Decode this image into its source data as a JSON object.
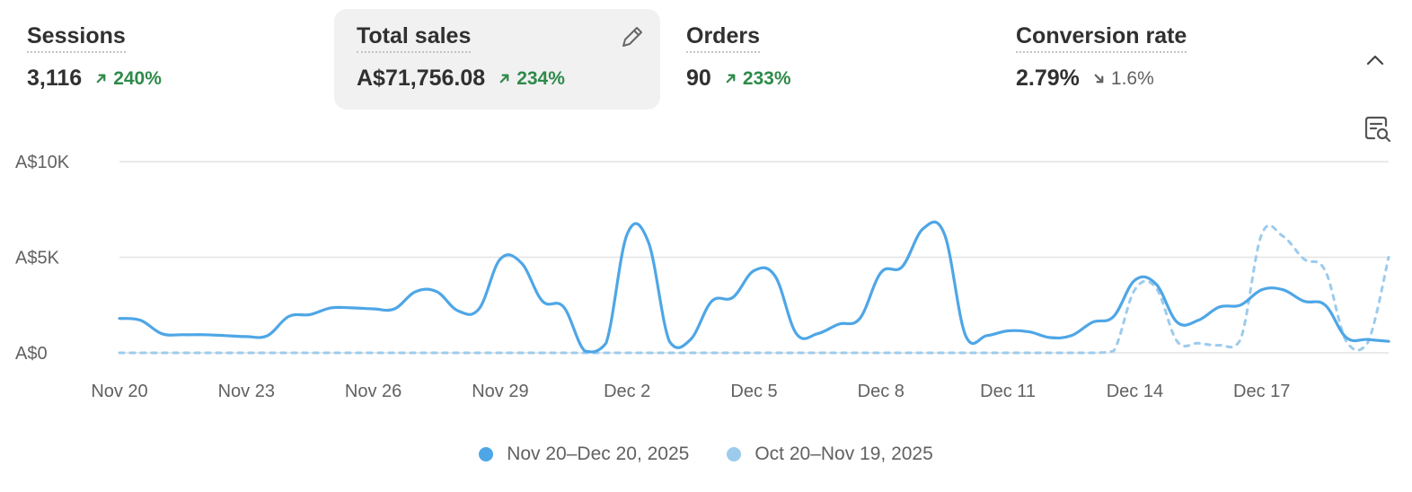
{
  "metrics": [
    {
      "title": "Sessions",
      "value": "3,116",
      "change": "240%",
      "direction": "up"
    },
    {
      "title": "Total sales",
      "value": "A$71,756.08",
      "change": "234%",
      "direction": "up",
      "selected": true
    },
    {
      "title": "Orders",
      "value": "90",
      "change": "233%",
      "direction": "up"
    },
    {
      "title": "Conversion rate",
      "value": "2.79%",
      "change": "1.6%",
      "direction": "down"
    }
  ],
  "icons": {
    "edit": "pencil-icon",
    "collapse": "chevron-up-icon",
    "analyze": "search-chart-icon"
  },
  "colors": {
    "current": "#4ea6e6",
    "previous": "#9ccbec",
    "positive": "#2e8a4a",
    "selected_bg": "#f1f1f1"
  },
  "chart_data": {
    "type": "line",
    "y_ticks": [
      "A$10K",
      "A$5K",
      "A$0"
    ],
    "y_tick_values": [
      10000,
      5000,
      0
    ],
    "ylim": [
      0,
      10000
    ],
    "x_tick_labels": [
      "Nov 20",
      "Nov 23",
      "Nov 26",
      "Nov 29",
      "Dec 2",
      "Dec 5",
      "Dec 8",
      "Dec 11",
      "Dec 14",
      "Dec 17"
    ],
    "x_tick_positions": [
      0,
      3,
      6,
      9,
      12,
      15,
      18,
      21,
      24,
      27
    ],
    "grid": true,
    "series": [
      {
        "name": "Nov 20–Dec 20, 2025",
        "style": "solid",
        "x": [
          0,
          0.5,
          1,
          1.5,
          2,
          2.5,
          3,
          3.5,
          4,
          4.5,
          5,
          5.5,
          6,
          6.5,
          7,
          7.5,
          8,
          8.5,
          9,
          9.5,
          10,
          10.5,
          11,
          11.5,
          12,
          12.5,
          13,
          13.5,
          14,
          14.5,
          15,
          15.5,
          16,
          16.5,
          17,
          17.5,
          18,
          18.5,
          19,
          19.5,
          20,
          20.5,
          21,
          21.5,
          22,
          22.5,
          23,
          23.5,
          24,
          24.5,
          25,
          25.5,
          26,
          26.5,
          27,
          27.5,
          28,
          28.5,
          29,
          29.5,
          30
        ],
        "values": [
          1800,
          1700,
          1000,
          950,
          950,
          900,
          850,
          900,
          1900,
          2000,
          2350,
          2350,
          2300,
          2300,
          3200,
          3200,
          2200,
          2300,
          4900,
          4700,
          2700,
          2400,
          100,
          500,
          6200,
          5800,
          600,
          700,
          2700,
          2900,
          4300,
          4000,
          1000,
          1000,
          1500,
          1800,
          4200,
          4500,
          6500,
          6200,
          900,
          900,
          1150,
          1100,
          800,
          900,
          1600,
          1900,
          3800,
          3600,
          1600,
          1700,
          2400,
          2500,
          3300,
          3300,
          2700,
          2500,
          800,
          700,
          600
        ]
      },
      {
        "name": "Oct 20–Nov 19, 2025",
        "style": "dashed",
        "x": [
          0,
          2,
          4,
          6,
          8,
          10,
          12,
          14,
          16,
          18,
          20,
          22,
          23,
          23.5,
          24,
          24.5,
          25,
          25.5,
          26,
          26.5,
          27,
          27.5,
          28,
          28.5,
          29,
          29.5,
          30
        ],
        "values": [
          0,
          0,
          0,
          0,
          0,
          0,
          0,
          0,
          0,
          0,
          0,
          0,
          0,
          100,
          3300,
          3400,
          600,
          500,
          400,
          700,
          6200,
          6100,
          4900,
          4300,
          600,
          500,
          5000
        ]
      }
    ]
  },
  "legend": [
    {
      "label": "Nov 20–Dec 20, 2025",
      "color": "#4ea6e6"
    },
    {
      "label": "Oct 20–Nov 19, 2025",
      "color": "#9ccbec"
    }
  ]
}
